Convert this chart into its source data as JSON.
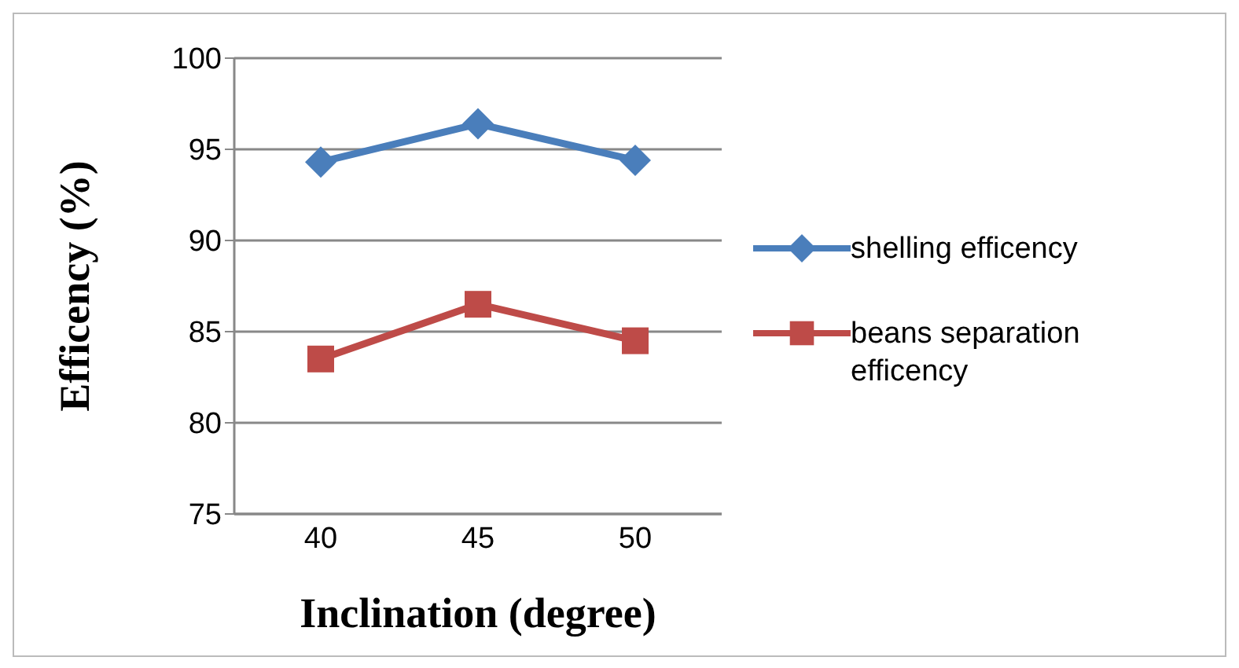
{
  "chart_data": {
    "type": "line",
    "xlabel": "Inclination (degree)",
    "ylabel": "Efficency (%)",
    "categories": [
      "40",
      "45",
      "50"
    ],
    "series": [
      {
        "name": "shelling efficency",
        "color": "#4a7ebb",
        "marker": "diamond",
        "values": [
          94.3,
          96.4,
          94.4
        ]
      },
      {
        "name": "beans separation efficency",
        "color": "#be4b48",
        "marker": "square",
        "values": [
          83.5,
          86.5,
          84.5
        ]
      }
    ],
    "ylim": [
      75,
      100
    ],
    "yticks": [
      75,
      80,
      85,
      90,
      95,
      100
    ],
    "grid": "y",
    "legend": "right",
    "line_style": "solid"
  }
}
